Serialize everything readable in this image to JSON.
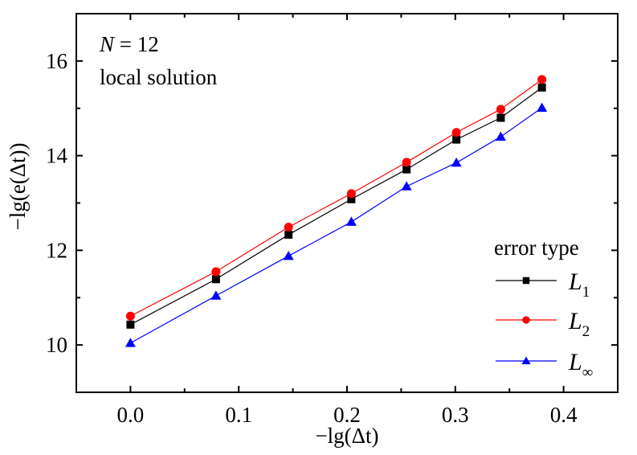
{
  "chart_data": {
    "type": "line",
    "title": "",
    "xlabel": "−lg(Δt)",
    "ylabel": "−lg(e(Δt))",
    "xlim": [
      -0.05,
      0.45
    ],
    "ylim": [
      9,
      17
    ],
    "x_ticks": [
      0.0,
      0.1,
      0.2,
      0.3,
      0.4
    ],
    "x_tick_labels": [
      "0.0",
      "0.1",
      "0.2",
      "0.3",
      "0.4"
    ],
    "x_minor_ticks": [
      0.05,
      0.15,
      0.25,
      0.35
    ],
    "y_ticks": [
      10,
      12,
      14,
      16
    ],
    "y_tick_labels": [
      "10",
      "12",
      "14",
      "16"
    ],
    "y_minor_ticks": [
      11,
      13,
      15
    ],
    "grid": false,
    "x": [
      0.0,
      0.079,
      0.146,
      0.204,
      0.255,
      0.301,
      0.342,
      0.38
    ],
    "series": [
      {
        "name": "L1",
        "label_main": "L",
        "label_sub": "1",
        "color": "#000000",
        "marker": "square",
        "values": [
          10.43,
          11.39,
          12.33,
          13.08,
          13.71,
          14.34,
          14.8,
          15.44
        ]
      },
      {
        "name": "L2",
        "label_main": "L",
        "label_sub": "2",
        "color": "#ff0000",
        "marker": "circle",
        "values": [
          10.61,
          11.55,
          12.49,
          13.2,
          13.86,
          14.49,
          14.98,
          15.61
        ]
      },
      {
        "name": "L∞",
        "label_main": "L",
        "label_sub": "∞",
        "color": "#0000ff",
        "marker": "triangle",
        "values": [
          10.04,
          11.04,
          11.88,
          12.6,
          13.35,
          13.85,
          14.4,
          15.01
        ]
      }
    ],
    "annotations": [
      {
        "text_italic": "N",
        "text": " = 12"
      },
      {
        "text": "local solution"
      }
    ],
    "legend": {
      "title": "error type",
      "position": "lower right"
    }
  }
}
